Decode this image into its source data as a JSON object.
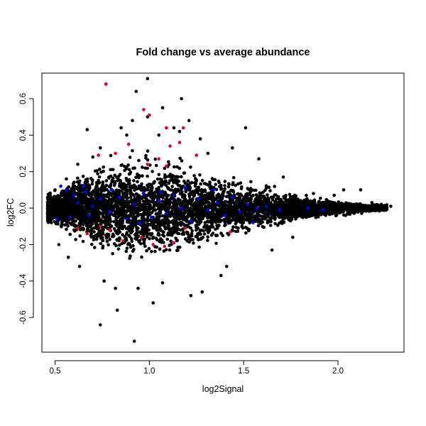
{
  "chart_data": {
    "type": "scatter",
    "title": "Fold change vs average abundance",
    "xlabel": "log2Signal",
    "ylabel": "log2FC",
    "xlim": [
      0.43,
      2.35
    ],
    "ylim": [
      -0.79,
      0.74
    ],
    "xticks": [
      0.5,
      1.0,
      1.5,
      2.0
    ],
    "xtick_labels": [
      "0.5",
      "1.0",
      "1.5",
      "2.0"
    ],
    "yticks": [
      -0.6,
      -0.4,
      -0.2,
      0.0,
      0.2,
      0.4,
      0.6
    ],
    "ytick_labels": [
      "-0.6",
      "-0.4",
      "-0.2",
      "0.0",
      "0.2",
      "0.4",
      "0.6"
    ],
    "grid": false,
    "colors": {
      "black": "#000000",
      "blue": "#0000ff",
      "red": "#e8002a"
    },
    "series": [
      {
        "color": "black",
        "points": [
          [
            0.77,
            0.68
          ],
          [
            0.93,
            0.64
          ],
          [
            0.99,
            0.71
          ],
          [
            1.17,
            0.6
          ],
          [
            1.07,
            0.55
          ],
          [
            0.99,
            0.5
          ],
          [
            0.91,
            0.48
          ],
          [
            0.85,
            0.44
          ],
          [
            0.67,
            0.43
          ],
          [
            1.21,
            0.48
          ],
          [
            1.16,
            0.42
          ],
          [
            1.13,
            0.44
          ],
          [
            1.51,
            0.44
          ],
          [
            1.27,
            0.38
          ],
          [
            1.05,
            0.4
          ],
          [
            0.88,
            0.4
          ],
          [
            0.74,
            0.33
          ],
          [
            1.31,
            0.3
          ],
          [
            1.44,
            0.33
          ],
          [
            1.58,
            0.27
          ],
          [
            1.71,
            0.17
          ],
          [
            1.87,
            0.08
          ],
          [
            1.98,
            0.07
          ],
          [
            2.03,
            0.1
          ],
          [
            2.12,
            0.1
          ],
          [
            2.18,
            0.03
          ],
          [
            2.23,
            0.02
          ],
          [
            2.28,
            0.01
          ],
          [
            2.14,
            0.0
          ],
          [
            2.09,
            -0.02
          ],
          [
            2.04,
            -0.04
          ],
          [
            1.95,
            -0.03
          ],
          [
            1.76,
            -0.16
          ],
          [
            1.65,
            -0.23
          ],
          [
            1.41,
            -0.32
          ],
          [
            1.38,
            -0.37
          ],
          [
            1.28,
            -0.46
          ],
          [
            1.22,
            -0.48
          ],
          [
            1.07,
            -0.41
          ],
          [
            1.02,
            -0.52
          ],
          [
            0.94,
            -0.44
          ],
          [
            0.83,
            -0.56
          ],
          [
            0.74,
            -0.64
          ],
          [
            0.92,
            -0.73
          ],
          [
            0.82,
            -0.44
          ],
          [
            0.76,
            -0.4
          ],
          [
            0.63,
            -0.32
          ],
          [
            0.57,
            -0.27
          ],
          [
            0.52,
            -0.2
          ],
          [
            0.48,
            -0.08
          ],
          [
            0.47,
            0.04
          ],
          [
            0.5,
            0.1
          ],
          [
            0.56,
            0.16
          ],
          [
            0.62,
            0.24
          ],
          [
            0.7,
            0.28
          ]
        ]
      },
      {
        "color": "blue",
        "points": [
          [
            0.53,
            0.12
          ],
          [
            0.56,
            0.1
          ],
          [
            0.6,
            0.07
          ],
          [
            0.62,
            0.03
          ],
          [
            0.66,
            0.09
          ],
          [
            0.68,
            -0.04
          ],
          [
            0.7,
            0.01
          ],
          [
            0.74,
            0.05
          ],
          [
            0.79,
            -0.02
          ],
          [
            0.84,
            0.06
          ],
          [
            0.88,
            -0.06
          ],
          [
            0.92,
            0.02
          ],
          [
            0.97,
            0.08
          ],
          [
            1.01,
            -0.05
          ],
          [
            1.05,
            0.04
          ],
          [
            1.09,
            -0.03
          ],
          [
            1.13,
            0.07
          ],
          [
            1.17,
            0.0
          ],
          [
            1.22,
            -0.07
          ],
          [
            1.26,
            0.05
          ],
          [
            1.31,
            -0.01
          ],
          [
            1.36,
            0.03
          ],
          [
            1.4,
            -0.04
          ],
          [
            1.44,
            0.06
          ],
          [
            1.48,
            -0.02
          ],
          [
            1.52,
            0.02
          ],
          [
            1.57,
            0.0
          ],
          [
            1.62,
            0.01
          ],
          [
            1.69,
            -0.01
          ],
          [
            1.84,
            0.0
          ],
          [
            1.92,
            -0.01
          ],
          [
            1.55,
            -0.08
          ],
          [
            1.34,
            0.1
          ],
          [
            1.06,
            0.09
          ],
          [
            0.8,
            0.1
          ],
          [
            0.58,
            -0.05
          ],
          [
            0.51,
            -0.06
          ],
          [
            0.65,
            0.12
          ],
          [
            0.95,
            -0.08
          ],
          [
            1.19,
            0.11
          ]
        ]
      },
      {
        "color": "red",
        "points": [
          [
            0.77,
            0.68
          ],
          [
            0.97,
            0.54
          ],
          [
            1.0,
            0.51
          ],
          [
            1.09,
            0.44
          ],
          [
            1.18,
            0.44
          ],
          [
            1.16,
            0.36
          ],
          [
            1.11,
            0.34
          ],
          [
            1.05,
            0.27
          ],
          [
            0.99,
            0.24
          ],
          [
            0.89,
            0.35
          ],
          [
            0.82,
            0.3
          ],
          [
            0.73,
            0.29
          ],
          [
            1.25,
            0.29
          ],
          [
            1.09,
            0.23
          ],
          [
            0.62,
            -0.11
          ],
          [
            0.67,
            -0.14
          ],
          [
            0.79,
            -0.12
          ],
          [
            0.86,
            -0.18
          ],
          [
            0.96,
            -0.16
          ],
          [
            1.02,
            -0.2
          ],
          [
            1.08,
            -0.21
          ],
          [
            1.13,
            -0.19
          ],
          [
            1.19,
            -0.11
          ],
          [
            1.43,
            -0.13
          ],
          [
            0.74,
            -0.1
          ]
        ]
      }
    ],
    "background_cloud": [
      {
        "x": 0.5,
        "y_center": 0.0,
        "y_spread": 0.06
      },
      {
        "x": 0.6,
        "y_center": 0.0,
        "y_spread": 0.11
      },
      {
        "x": 0.8,
        "y_center": 0.0,
        "y_spread": 0.18
      },
      {
        "x": 1.0,
        "y_center": 0.0,
        "y_spread": 0.2
      },
      {
        "x": 1.2,
        "y_center": 0.0,
        "y_spread": 0.17
      },
      {
        "x": 1.4,
        "y_center": 0.0,
        "y_spread": 0.12
      },
      {
        "x": 1.6,
        "y_center": 0.0,
        "y_spread": 0.08
      },
      {
        "x": 1.8,
        "y_center": 0.0,
        "y_spread": 0.05
      },
      {
        "x": 2.0,
        "y_center": 0.0,
        "y_spread": 0.03
      },
      {
        "x": 2.2,
        "y_center": 0.0,
        "y_spread": 0.015
      }
    ]
  }
}
